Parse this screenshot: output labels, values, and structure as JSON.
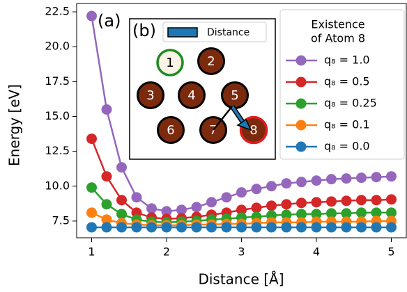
{
  "chart_data": {
    "type": "line",
    "xlabel": "Distance [Å]",
    "ylabel": "Energy [eV]",
    "annotation": "(a)",
    "legend_title": [
      "Existence",
      "of Atom 8"
    ],
    "legend_position": "upper right",
    "x": [
      1.0,
      1.2,
      1.4,
      1.6,
      1.8,
      2.0,
      2.2,
      2.4,
      2.6,
      2.8,
      3.0,
      3.2,
      3.4,
      3.6,
      3.8,
      4.0,
      4.2,
      4.4,
      4.6,
      4.8,
      5.0
    ],
    "series": [
      {
        "name": "q₈ = 1.0",
        "color": "#9467bd",
        "values": [
          22.2,
          15.5,
          11.35,
          9.2,
          8.4,
          8.2,
          8.3,
          8.5,
          8.85,
          9.2,
          9.55,
          9.8,
          10.0,
          10.2,
          10.3,
          10.4,
          10.5,
          10.55,
          10.6,
          10.65,
          10.7
        ]
      },
      {
        "name": "q₈ = 0.5",
        "color": "#d62728",
        "values": [
          13.4,
          10.7,
          9.0,
          8.1,
          7.75,
          7.65,
          7.7,
          7.8,
          7.95,
          8.1,
          8.3,
          8.45,
          8.6,
          8.7,
          8.8,
          8.85,
          8.9,
          8.95,
          9.0,
          9.0,
          9.05
        ]
      },
      {
        "name": "q₈ = 0.25",
        "color": "#2ca02c",
        "values": [
          9.9,
          8.7,
          8.0,
          7.6,
          7.45,
          7.4,
          7.45,
          7.5,
          7.6,
          7.65,
          7.75,
          7.8,
          7.9,
          7.95,
          8.0,
          8.0,
          8.05,
          8.05,
          8.1,
          8.1,
          8.1
        ]
      },
      {
        "name": "q₈ = 0.1",
        "color": "#ff7f0e",
        "values": [
          8.1,
          7.6,
          7.35,
          7.25,
          7.2,
          7.2,
          7.2,
          7.25,
          7.25,
          7.3,
          7.3,
          7.35,
          7.4,
          7.4,
          7.4,
          7.45,
          7.45,
          7.45,
          7.45,
          7.5,
          7.5
        ]
      },
      {
        "name": "q₈ = 0.0",
        "color": "#1f77b4",
        "values": [
          7.05,
          7.05,
          7.05,
          7.05,
          7.05,
          7.05,
          7.05,
          7.05,
          7.05,
          7.05,
          7.05,
          7.05,
          7.05,
          7.05,
          7.05,
          7.05,
          7.05,
          7.05,
          7.05,
          7.05,
          7.05
        ]
      }
    ],
    "xlim": [
      0.8,
      5.2
    ],
    "ylim": [
      6.3,
      23.1
    ],
    "xticks": [
      1,
      2,
      3,
      4,
      5
    ],
    "yticks": [
      7.5,
      {
        "value": 10,
        "label": "10.0"
      },
      12.5,
      {
        "value": 15,
        "label": "15.0"
      },
      17.5,
      {
        "value": 20,
        "label": "20.0"
      },
      22.5
    ],
    "inset": {
      "label": "(b)",
      "legend": "Distance",
      "atoms": [
        "1",
        "2",
        "3",
        "4",
        "5",
        "6",
        "7",
        "8"
      ]
    }
  }
}
